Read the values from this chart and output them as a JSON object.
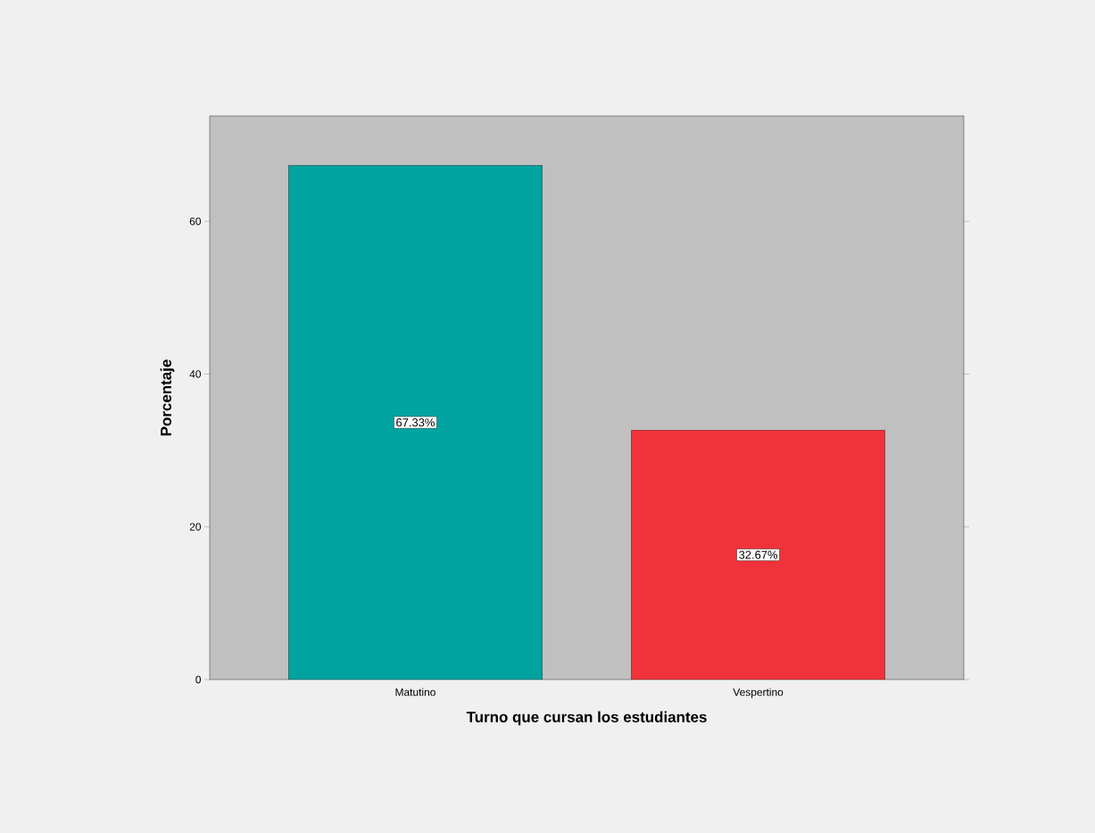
{
  "chart_data": {
    "type": "bar",
    "xlabel": "Turno que cursan los estudiantes",
    "ylabel": "Porcentaje",
    "categories": [
      "Matutino",
      "Vespertino"
    ],
    "values": [
      67.33,
      32.67
    ],
    "colors": [
      "#00a39f",
      "#f0333a"
    ],
    "value_labels": [
      "67.33%",
      "32.67%"
    ],
    "ylim": [
      0,
      73.8
    ],
    "yticks": [
      0,
      20,
      40,
      60
    ]
  }
}
